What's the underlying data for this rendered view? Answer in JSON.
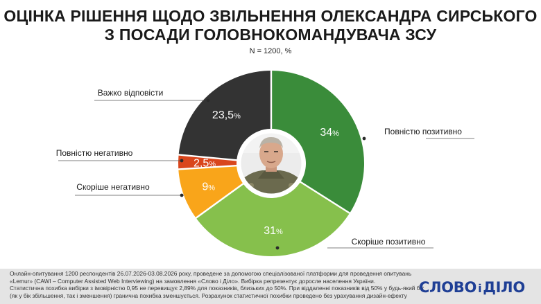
{
  "title": {
    "line1": "ОЦІНКА РІШЕННЯ ЩОДО ЗВІЛЬНЕННЯ ОЛЕКСАНДРА СИРСЬКОГО",
    "line2": "З ПОСАДИ ГОЛОВНОКОМАНДУВАЧА ЗСУ"
  },
  "subtitle": "N = 1200, %",
  "chart_data": {
    "type": "pie",
    "variant": "donut",
    "title": "ОЦІНКА РІШЕННЯ ЩОДО ЗВІЛЬНЕННЯ ОЛЕКСАНДРА СИРСЬКОГО З ПОСАДИ ГОЛОВНОКОМАНДУВАЧА ЗСУ",
    "unit": "%",
    "slices": [
      {
        "label": "Повністю позитивно",
        "value": 34,
        "display": "34",
        "color": "#3a8c3a"
      },
      {
        "label": "Скоріше позитивно",
        "value": 31,
        "display": "31",
        "color": "#86c04c"
      },
      {
        "label": "Скоріше негативно",
        "value": 9,
        "display": "9",
        "color": "#f9a51a"
      },
      {
        "label": "Повністю негативно",
        "value": 2.5,
        "display": "2,5",
        "color": "#d9461c"
      },
      {
        "label": "Важко відповісти",
        "value": 23.5,
        "display": "23,5",
        "color": "#333333"
      }
    ]
  },
  "footer": {
    "lines": [
      "Онлайн-опитування 1200 респондентів 26.07.2026-03.08.2026 року, проведене за допомогою спеціалізованої платформи для проведення опитувань",
      "«Lemur» (CAWI – Computer Assisted Web Interviewing) на замовлення «Слово і Діло». Вибірка репрезентує доросле населення України.",
      "Статистична похибка вибірки з імовірністю 0,95 не перевищує 2,89% для показників, близьких до 50%. При віддаленні показників від 50% у будь-який бік",
      "(як у бік збільшення, так і зменшення) гранична похибка зменшується. Розрахунок статистичної похибки проведено без урахування дизайн-ефекту"
    ]
  },
  "brand": {
    "left": "СЛОВО",
    "mid": "і",
    "right": "ДІЛО"
  },
  "center_image": {
    "icon": "portrait-photo"
  }
}
